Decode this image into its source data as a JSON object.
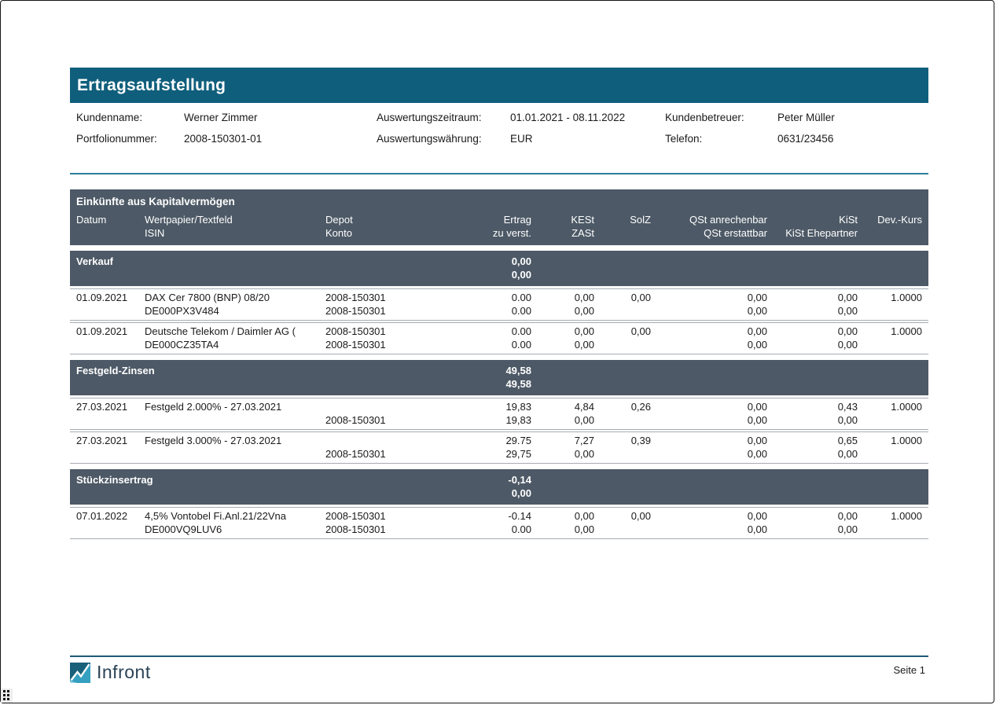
{
  "page": {
    "title": "Ertragsaufstellung"
  },
  "info": {
    "rows": [
      {
        "pairs": [
          {
            "label": "Kundenname:",
            "value": "Werner Zimmer"
          },
          {
            "label": "Auswertungszeitraum:",
            "value": "01.01.2021 - 08.11.2022"
          },
          {
            "label": "Kundenbetreuer:",
            "value": "Peter Müller"
          }
        ]
      },
      {
        "pairs": [
          {
            "label": "Portfolionummer:",
            "value": "2008-150301-01"
          },
          {
            "label": "Auswertungswährung:",
            "value": "EUR"
          },
          {
            "label": "Telefon:",
            "value": "0631/23456"
          }
        ]
      }
    ]
  },
  "table": {
    "title": "Einkünfte aus Kapitalvermögen",
    "columns": [
      {
        "key": "datum",
        "align": "left",
        "lines": [
          "Datum",
          ""
        ]
      },
      {
        "key": "wp",
        "align": "left",
        "lines": [
          "Wertpapier/Textfeld",
          "ISIN"
        ]
      },
      {
        "key": "depot",
        "align": "left",
        "lines": [
          "Depot",
          "Konto"
        ]
      },
      {
        "key": "ertrag",
        "align": "right",
        "lines": [
          "Ertrag",
          "zu verst."
        ]
      },
      {
        "key": "kest",
        "align": "right",
        "lines": [
          "KESt",
          "ZASt"
        ]
      },
      {
        "key": "solz",
        "align": "right",
        "lines": [
          "SolZ",
          ""
        ]
      },
      {
        "key": "qst",
        "align": "right",
        "lines": [
          "QSt anrechenbar",
          "QSt erstattbar"
        ]
      },
      {
        "key": "kist",
        "align": "right",
        "lines": [
          "KiSt",
          "KiSt Ehepartner"
        ]
      },
      {
        "key": "dev",
        "align": "right",
        "lines": [
          "Dev.-Kurs",
          ""
        ]
      }
    ],
    "sections": [
      {
        "name": "Verkauf",
        "totals": [
          "0,00",
          "0,00"
        ],
        "rows": [
          {
            "datum": [
              "01.09.2021",
              ""
            ],
            "wp": [
              "DAX Cer 7800 (BNP) 08/20",
              "DE000PX3V484"
            ],
            "depot": [
              "2008-150301",
              "2008-150301"
            ],
            "ertrag": [
              "0.00",
              "0.00"
            ],
            "kest": [
              "0,00",
              "0,00"
            ],
            "solz": [
              "0,00",
              ""
            ],
            "qst": [
              "0,00",
              "0,00"
            ],
            "kist": [
              "0,00",
              "0,00"
            ],
            "dev": [
              "1.0000",
              ""
            ]
          },
          {
            "datum": [
              "01.09.2021",
              ""
            ],
            "wp": [
              "Deutsche Telekom / Daimler AG (",
              "DE000CZ35TA4"
            ],
            "depot": [
              "2008-150301",
              "2008-150301"
            ],
            "ertrag": [
              "0.00",
              "0.00"
            ],
            "kest": [
              "0,00",
              "0,00"
            ],
            "solz": [
              "0,00",
              ""
            ],
            "qst": [
              "0,00",
              "0,00"
            ],
            "kist": [
              "0,00",
              "0,00"
            ],
            "dev": [
              "1.0000",
              ""
            ]
          }
        ]
      },
      {
        "name": "Festgeld-Zinsen",
        "totals": [
          "49,58",
          "49,58"
        ],
        "rows": [
          {
            "datum": [
              "27.03.2021",
              ""
            ],
            "wp": [
              "Festgeld 2.000% - 27.03.2021",
              ""
            ],
            "depot": [
              "",
              "2008-150301"
            ],
            "ertrag": [
              "19,83",
              "19,83"
            ],
            "kest": [
              "4,84",
              "0,00"
            ],
            "solz": [
              "0,26",
              ""
            ],
            "qst": [
              "0,00",
              "0,00"
            ],
            "kist": [
              "0,43",
              "0,00"
            ],
            "dev": [
              "1.0000",
              ""
            ]
          },
          {
            "datum": [
              "27.03.2021",
              ""
            ],
            "wp": [
              "Festgeld 3.000% - 27.03.2021",
              ""
            ],
            "depot": [
              "",
              "2008-150301"
            ],
            "ertrag": [
              "29.75",
              "29,75"
            ],
            "kest": [
              "7,27",
              "0,00"
            ],
            "solz": [
              "0,39",
              ""
            ],
            "qst": [
              "0,00",
              "0,00"
            ],
            "kist": [
              "0,65",
              "0,00"
            ],
            "dev": [
              "1.0000",
              ""
            ]
          }
        ]
      },
      {
        "name": "Stückzinsertrag",
        "totals": [
          "-0,14",
          "0,00"
        ],
        "rows": [
          {
            "datum": [
              "07.01.2022",
              ""
            ],
            "wp": [
              "4,5% Vontobel Fi.Anl.21/22Vna",
              "DE000VQ9LUV6"
            ],
            "depot": [
              "2008-150301",
              "2008-150301"
            ],
            "ertrag": [
              "-0.14",
              "0.00"
            ],
            "kest": [
              "0,00",
              "0,00"
            ],
            "solz": [
              "0,00",
              ""
            ],
            "qst": [
              "0,00",
              "0,00"
            ],
            "kist": [
              "0,00",
              "0,00"
            ],
            "dev": [
              "1.0000",
              ""
            ]
          }
        ]
      }
    ]
  },
  "footer": {
    "brand": "Infront",
    "page_label": "Seite 1"
  },
  "colors": {
    "title_bar": "#0f5e7c",
    "section_header": "#4d5966",
    "divider": "#2d7f9b",
    "footer_line": "#1f5a78",
    "row_border": "#a6acb2",
    "logo_dark": "#19607a",
    "logo_light": "#35a0bf",
    "logo_lighter": "#9bd6e6",
    "brand_text": "#2b4356"
  }
}
